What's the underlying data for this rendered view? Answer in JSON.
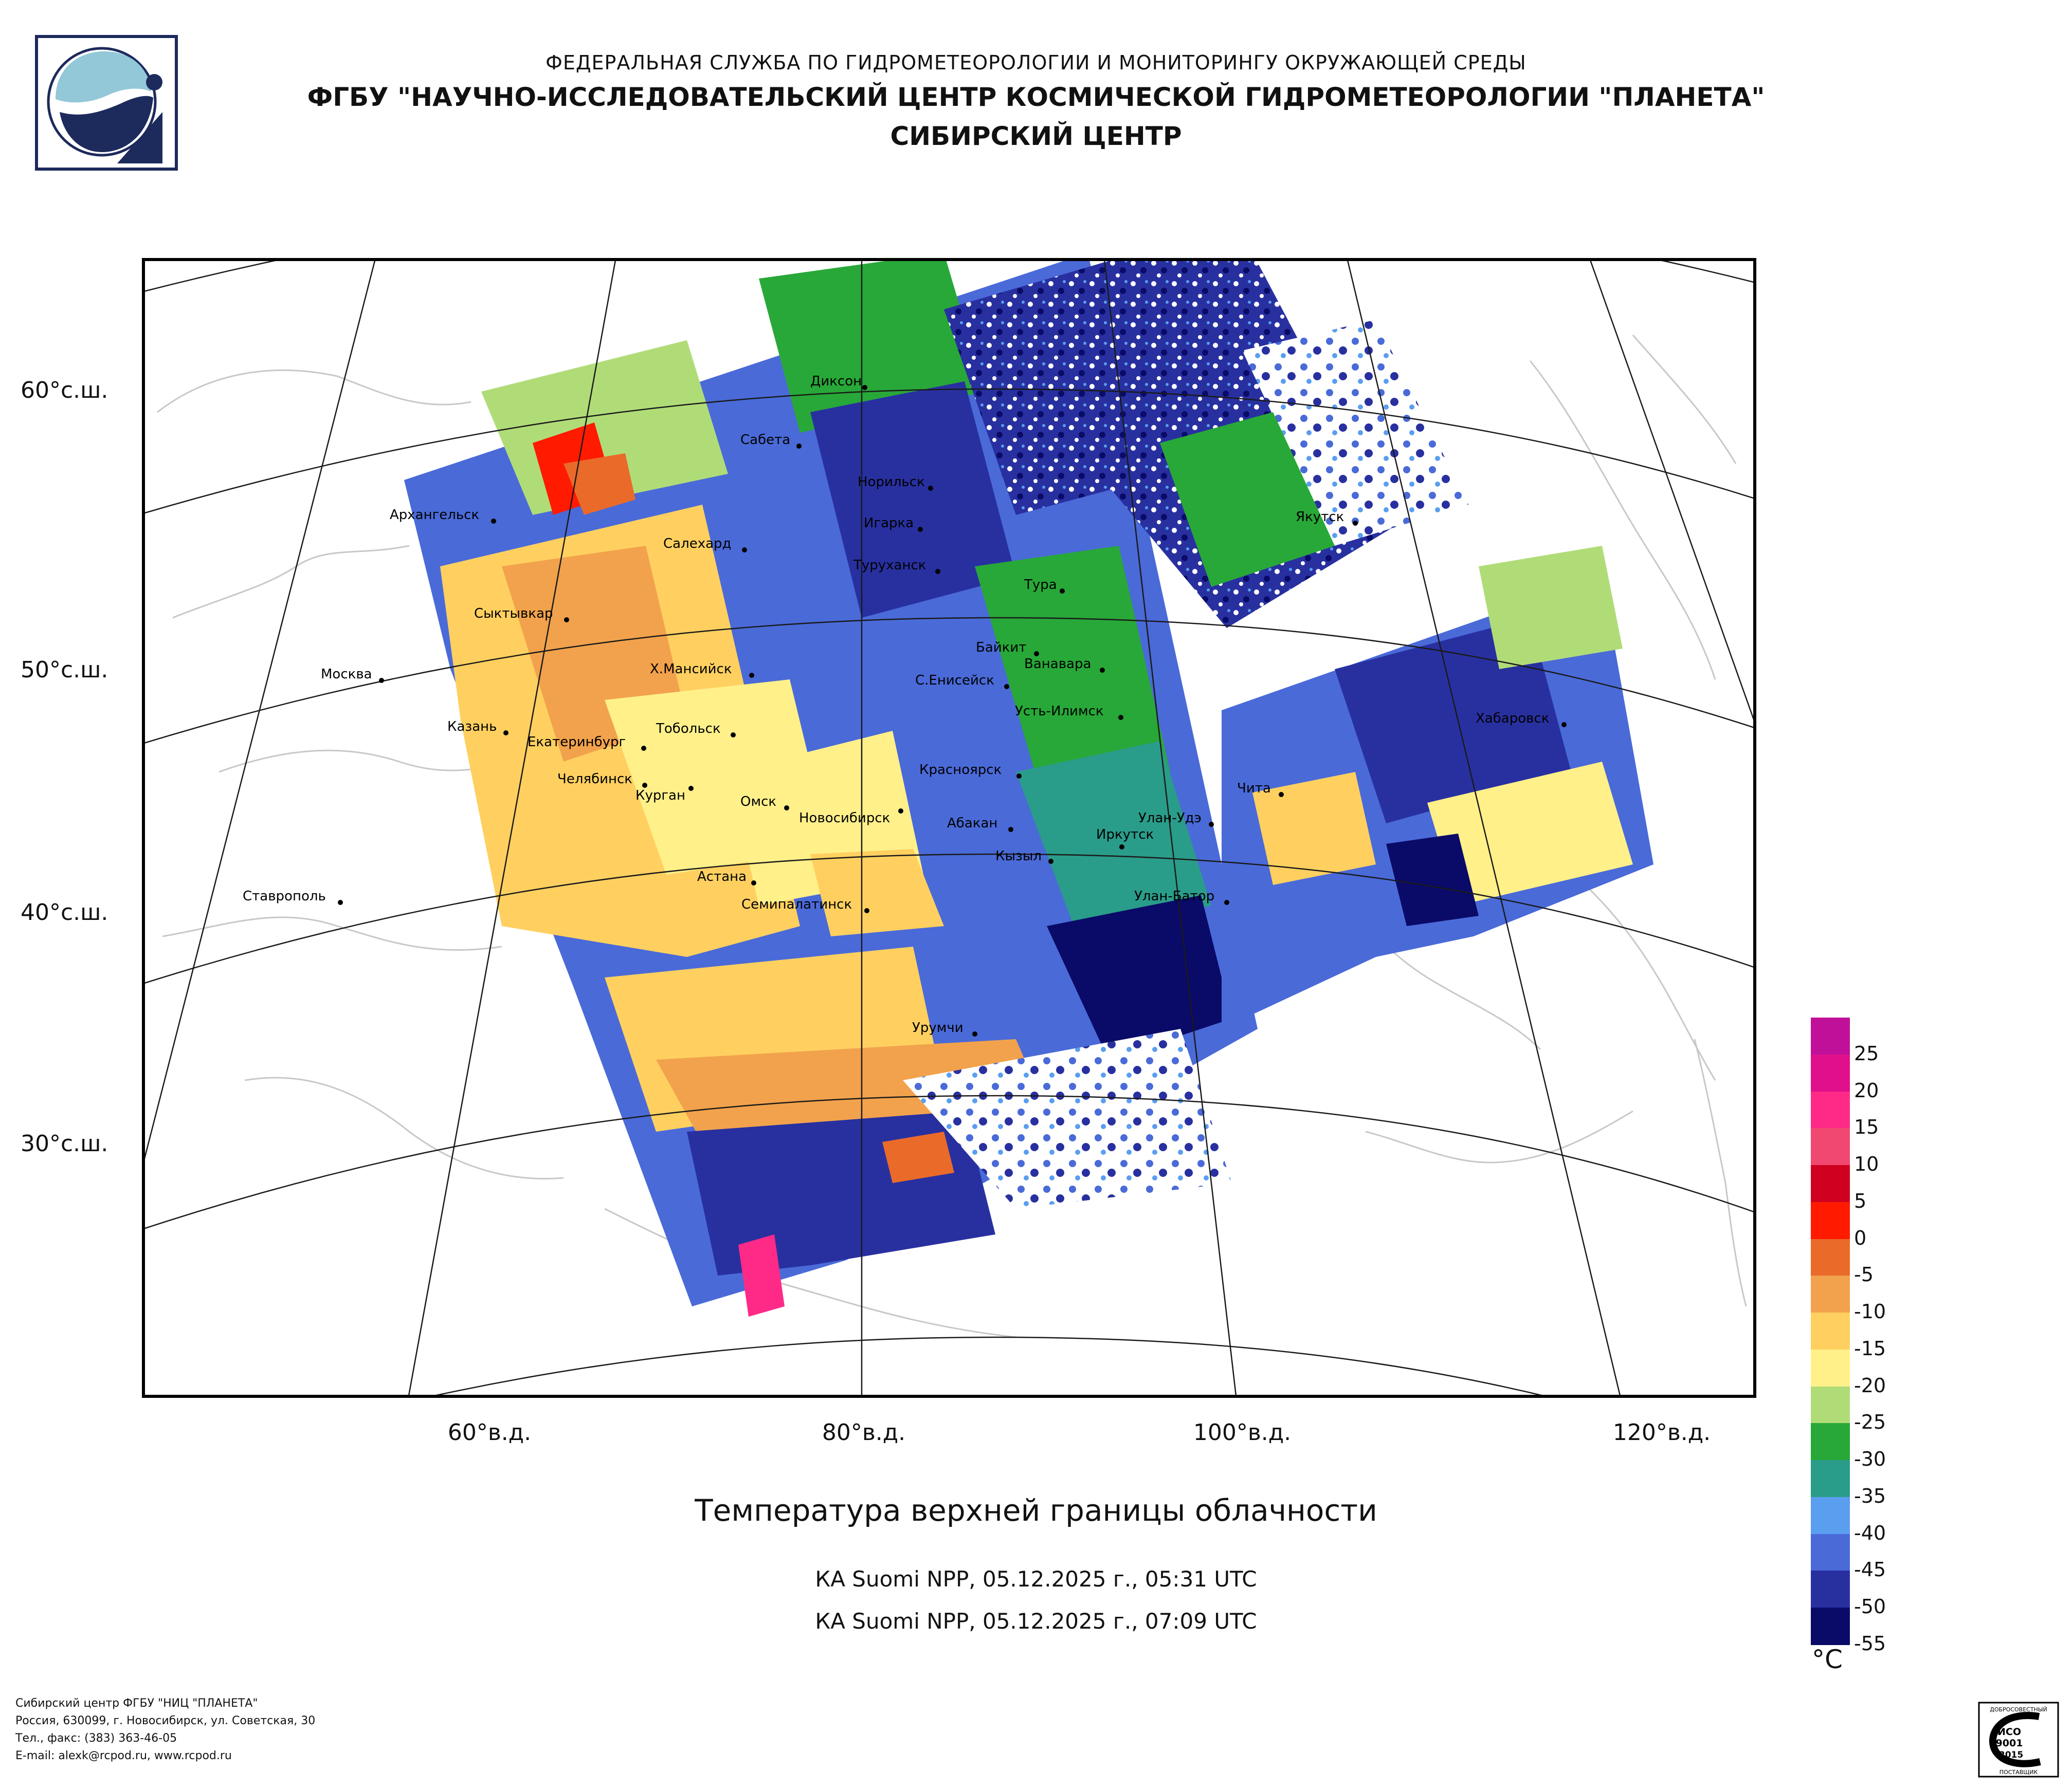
{
  "header": {
    "org": "ФЕДЕРАЛЬНАЯ СЛУЖБА ПО ГИДРОМЕТЕОРОЛОГИИ И МОНИТОРИНГУ ОКРУЖАЮЩЕЙ СРЕДЫ",
    "center": "ФГБУ \"НАУЧНО-ИССЛЕДОВАТЕЛЬСКИЙ ЦЕНТР КОСМИЧЕСКОЙ ГИДРОМЕТЕОРОЛОГИИ \"ПЛАНЕТА\"",
    "branch": "СИБИРСКИЙ ЦЕНТР"
  },
  "map": {
    "lat_labels": [
      "60°с.ш.",
      "50°с.ш.",
      "40°с.ш.",
      "30°с.ш."
    ],
    "lon_labels": [
      "60°в.д.",
      "80°в.д.",
      "100°в.д.",
      "120°в.д."
    ],
    "cities": [
      "Диксон",
      "Сабета",
      "Норильск",
      "Игарка",
      "Туруханск",
      "Якутск",
      "Архангельск",
      "Салехард",
      "Тура",
      "Сыктывкар",
      "Байкит",
      "Ванавара",
      "Москва",
      "Х.Мансийск",
      "С.Енисейск",
      "Усть-Илимск",
      "Казань",
      "Екатеринбург",
      "Тобольск",
      "Хабаровск",
      "Челябинск",
      "Красноярск",
      "Курган",
      "Омск",
      "Новосибирск",
      "Чита",
      "Абакан",
      "Улан-Удэ",
      "Иркутск",
      "Кызыл",
      "Астана",
      "Ставрополь",
      "Улан-Батор",
      "Семипалатинск",
      "Урумчи"
    ]
  },
  "caption": {
    "title": "Температура верхней границы облачности",
    "pass1": "КА Suomi NPP, 05.12.2025 г., 05:31 UTC",
    "pass2": "КА Suomi NPP, 05.12.2025 г., 07:09 UTC"
  },
  "legend": {
    "labels": [
      "25",
      "20",
      "15",
      "10",
      "5",
      "0",
      "-5",
      "-10",
      "-15",
      "-20",
      "-25",
      "-30",
      "-35",
      "-40",
      "-45",
      "-50",
      "-55"
    ],
    "colors": [
      "#c0109a",
      "#e0108c",
      "#ff2a88",
      "#f04870",
      "#d00020",
      "#ff1a00",
      "#ea6a2a",
      "#f2a24c",
      "#ffd060",
      "#fff08a",
      "#b0dc78",
      "#28a838",
      "#2a9c8a",
      "#5a9ef0",
      "#4a6ad8",
      "#2830a0",
      "#0a0a68"
    ],
    "unit": "°C"
  },
  "footer": {
    "line1": "Сибирский центр ФГБУ \"НИЦ \"ПЛАНЕТА\"",
    "line2": "Россия, 630099, г. Новосибирск, ул. Советская, 30",
    "line3": "Тел., факс: (383) 363-46-05",
    "line4": "E-mail: alexk@rcpod.ru, www.rcpod.ru"
  },
  "certificate": {
    "top": "ДОБРОСОВЕСТНЫЙ",
    "line1": "ИСО",
    "line2": "9001",
    "line3": "-2015",
    "bottom": "ПОСТАВЩИК"
  }
}
